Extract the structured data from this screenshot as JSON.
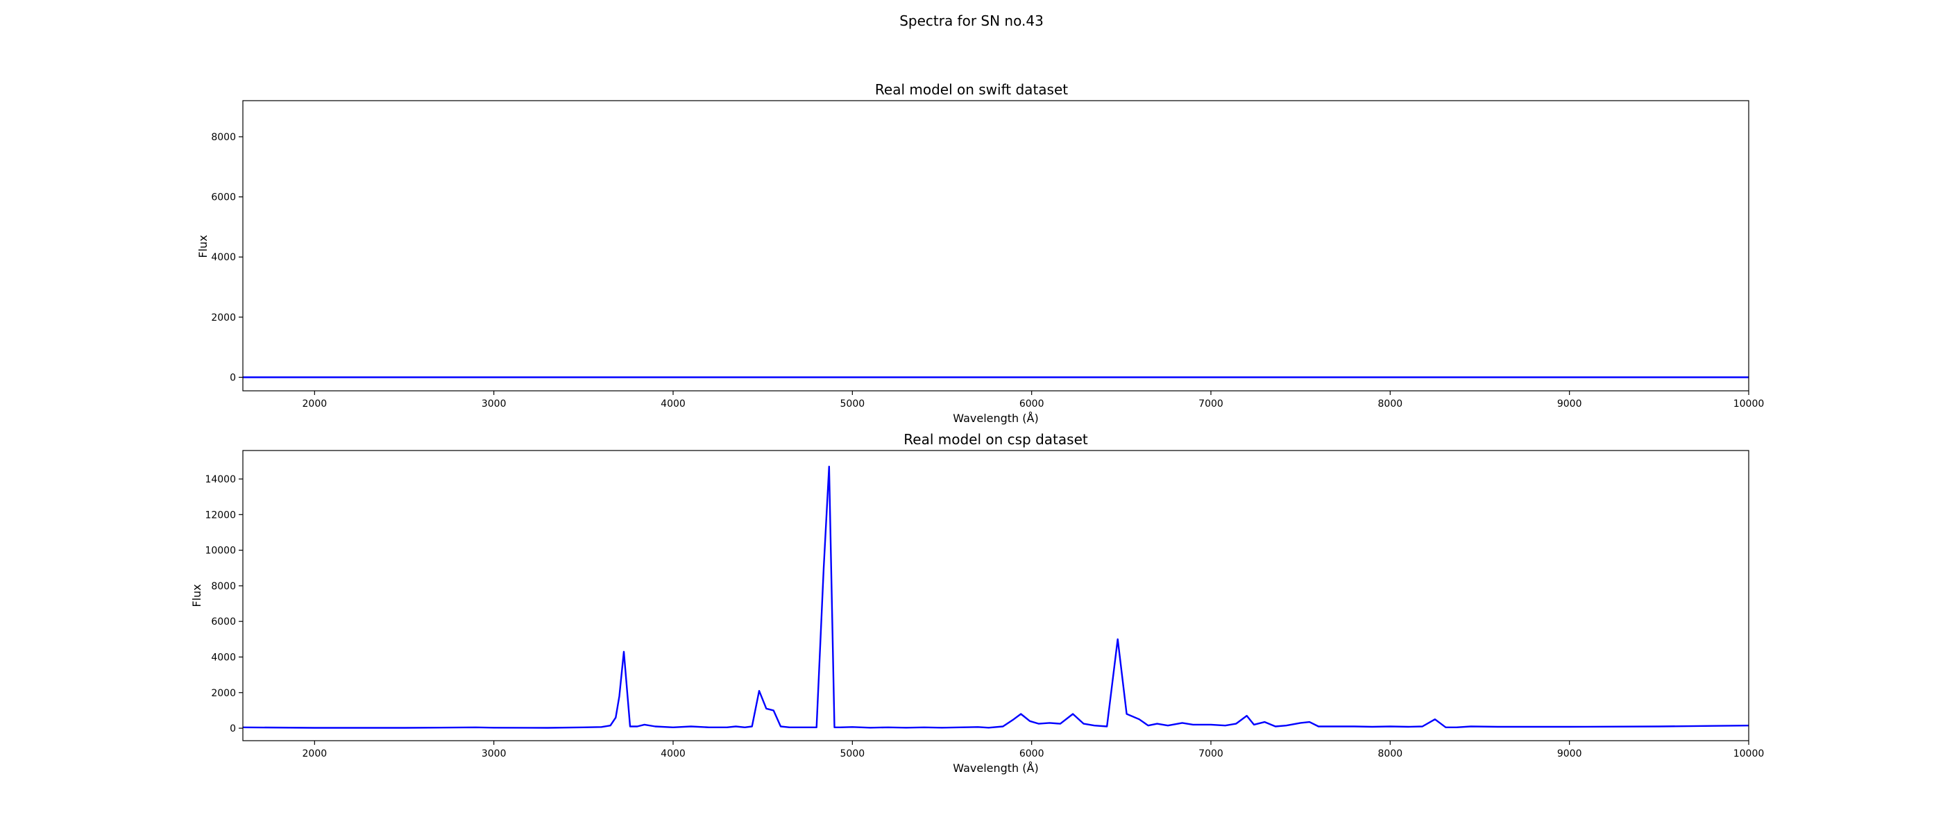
{
  "figure": {
    "suptitle": "Spectra for SN no.43"
  },
  "chart_data": [
    {
      "type": "line",
      "title": "Real model on swift dataset",
      "xlabel": "Wavelength (Å)",
      "ylabel": "Flux",
      "xlim": [
        1600,
        10000
      ],
      "ylim": [
        -450,
        9200
      ],
      "xticks": [
        2000,
        3000,
        4000,
        5000,
        6000,
        7000,
        8000,
        9000,
        10000
      ],
      "yticks": [
        0,
        2000,
        4000,
        6000,
        8000
      ],
      "grid": false,
      "series": [
        {
          "color": "#0000ff",
          "x": [
            1600,
            2000,
            3000,
            4000,
            5000,
            6000,
            7000,
            8000,
            9000,
            10000
          ],
          "y": [
            0,
            0,
            0,
            0,
            0,
            0,
            0,
            0,
            0,
            0
          ]
        }
      ]
    },
    {
      "type": "line",
      "title": "Real model on csp dataset",
      "xlabel": "Wavelength (Å)",
      "ylabel": "Flux",
      "xlim": [
        1600,
        10000
      ],
      "ylim": [
        -700,
        15600
      ],
      "xticks": [
        2000,
        3000,
        4000,
        5000,
        6000,
        7000,
        8000,
        9000,
        10000
      ],
      "yticks": [
        0,
        2000,
        4000,
        6000,
        8000,
        10000,
        12000,
        14000
      ],
      "grid": false,
      "series": [
        {
          "color": "#0000ff",
          "x": [
            1600,
            2000,
            2500,
            2900,
            3000,
            3300,
            3500,
            3600,
            3650,
            3680,
            3700,
            3725,
            3760,
            3800,
            3840,
            3900,
            4000,
            4100,
            4200,
            4300,
            4350,
            4400,
            4440,
            4480,
            4520,
            4560,
            4600,
            4650,
            4700,
            4800,
            4840,
            4870,
            4900,
            4930,
            5000,
            5100,
            5200,
            5300,
            5400,
            5500,
            5600,
            5700,
            5760,
            5840,
            5900,
            5940,
            5990,
            6040,
            6100,
            6160,
            6230,
            6290,
            6350,
            6420,
            6480,
            6530,
            6600,
            6650,
            6700,
            6760,
            6840,
            6900,
            7000,
            7080,
            7140,
            7200,
            7240,
            7300,
            7360,
            7420,
            7500,
            7550,
            7600,
            7700,
            7800,
            7900,
            8000,
            8100,
            8180,
            8250,
            8310,
            8370,
            8450,
            8600,
            9000,
            9500,
            9800,
            10000
          ],
          "y": [
            50,
            20,
            20,
            50,
            30,
            20,
            50,
            70,
            150,
            600,
            1800,
            4300,
            100,
            100,
            200,
            100,
            50,
            100,
            50,
            50,
            100,
            50,
            100,
            2100,
            1100,
            1000,
            100,
            50,
            50,
            50,
            9000,
            14700,
            50,
            50,
            70,
            30,
            50,
            30,
            50,
            30,
            50,
            70,
            30,
            100,
            500,
            800,
            400,
            250,
            300,
            250,
            800,
            250,
            150,
            100,
            5000,
            800,
            500,
            150,
            250,
            150,
            300,
            200,
            200,
            150,
            250,
            700,
            200,
            350,
            100,
            150,
            300,
            350,
            100,
            100,
            100,
            80,
            100,
            80,
            100,
            500,
            50,
            50,
            100,
            80,
            80,
            100,
            130,
            150
          ]
        }
      ]
    }
  ]
}
